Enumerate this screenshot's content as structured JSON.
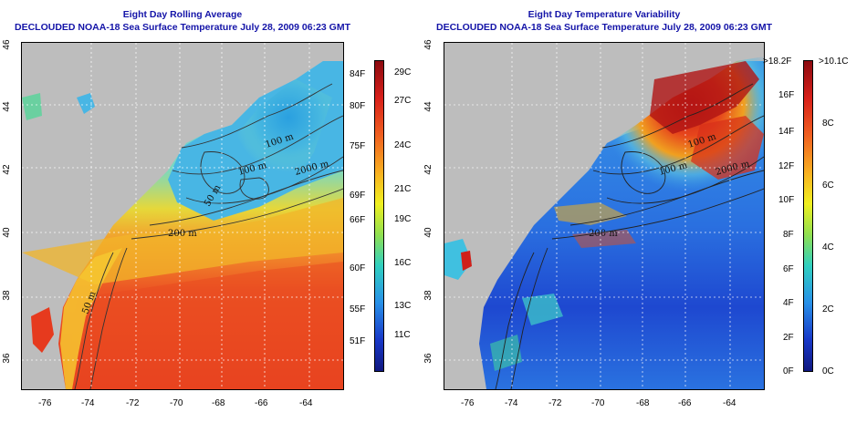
{
  "left_panel": {
    "title_line1": "Eight Day Rolling Average",
    "title_line2": "DECLOUDED NOAA-18 Sea Surface Temperature July 28, 2009 06:23 GMT",
    "x_ticks": [
      "-76",
      "-74",
      "-72",
      "-70",
      "-68",
      "-66",
      "-64"
    ],
    "y_ticks": [
      "46",
      "44",
      "42",
      "40",
      "38",
      "36"
    ],
    "contour_labels": [
      "100 m",
      "100 m",
      "2000 m",
      "200 m",
      "50 m",
      "50 m"
    ],
    "colorbar_f": [
      "84F",
      "80F",
      "75F",
      "69F",
      "66F",
      "60F",
      "55F",
      "51F"
    ],
    "colorbar_c": [
      "29C",
      "27C",
      "24C",
      "21C",
      "19C",
      "16C",
      "13C",
      "11C"
    ],
    "colors": {
      "warm": "#e8321e",
      "mid": "#f0e020",
      "cool": "#3ab0e8",
      "land": "#bdbdbd"
    }
  },
  "right_panel": {
    "title_line1": "Eight Day Temperature Variability",
    "title_line2": "DECLOUDED NOAA-18 Sea Surface Temperature July 28, 2009 06:23 GMT",
    "x_ticks": [
      "-76",
      "-74",
      "-72",
      "-70",
      "-68",
      "-66",
      "-64"
    ],
    "y_ticks": [
      "46",
      "44",
      "42",
      "40",
      "38",
      "36"
    ],
    "contour_labels": [
      "100 m",
      "100 m",
      "2000 m",
      "200 m"
    ],
    "colorbar_f": [
      ">18.2F",
      "16F",
      "14F",
      "12F",
      "10F",
      "8F",
      "6F",
      "4F",
      "2F",
      "0F"
    ],
    "colorbar_c": [
      ">10.1C",
      "8C",
      "6C",
      "4C",
      "2C",
      "0C"
    ],
    "colors": {
      "high": "#b01010",
      "low": "#1830d0",
      "land": "#bdbdbd"
    }
  }
}
